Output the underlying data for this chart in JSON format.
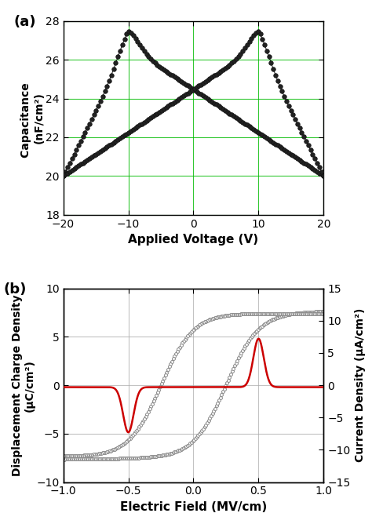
{
  "panel_a": {
    "label": "(a)",
    "xlabel": "Applied Voltage (V)",
    "ylabel": "Capacitance \n(nF/cm²)",
    "xlim": [
      -20,
      20
    ],
    "ylim": [
      18,
      28
    ],
    "yticks": [
      18,
      20,
      22,
      24,
      26,
      28
    ],
    "xticks": [
      -20,
      -10,
      0,
      10,
      20
    ],
    "grid_color": "#00bb00",
    "curve_color": "#1a1a1a"
  },
  "panel_b": {
    "label": "(b)",
    "xlabel": "Electric Field (MV/cm)",
    "ylabel": "Displacement Charge Density\n(μC/cm²)",
    "ylabel_right": "Current Density (μA/cm²)",
    "xlim": [
      -1.0,
      1.0
    ],
    "ylim": [
      -10,
      10
    ],
    "ylim_right": [
      -15,
      15
    ],
    "yticks": [
      -10,
      -5,
      0,
      5,
      10
    ],
    "yticks_right": [
      -15,
      -10,
      -5,
      0,
      5,
      10,
      15
    ],
    "xticks": [
      -1.0,
      -0.5,
      0.0,
      0.5,
      1.0
    ],
    "grid_color": "#aaaaaa",
    "hysteresis_color": "#888888",
    "current_color": "#cc0000"
  }
}
